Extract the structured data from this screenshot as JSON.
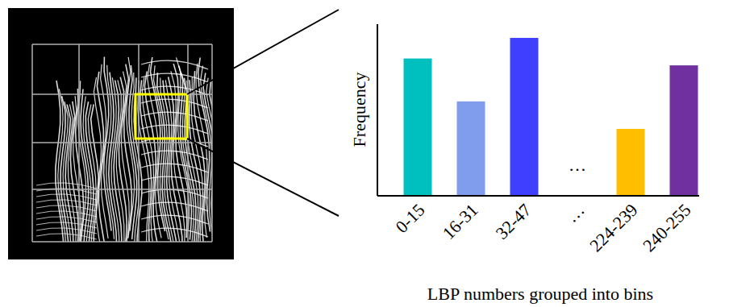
{
  "chart_data": {
    "type": "bar",
    "categories": [
      "0-15",
      "16-31",
      "32-47",
      "…",
      "224-239",
      "240-255"
    ],
    "values": [
      80,
      55,
      92,
      null,
      39,
      76
    ],
    "colors": [
      "#00bfbf",
      "#7f9ced",
      "#3f3fff",
      null,
      "#ffbf00",
      "#7030a0"
    ],
    "y_label": "Frequency",
    "x_label": "LBP numbers grouped into bins",
    "ylim": [
      0,
      100
    ],
    "tick_labels": "x"
  }
}
